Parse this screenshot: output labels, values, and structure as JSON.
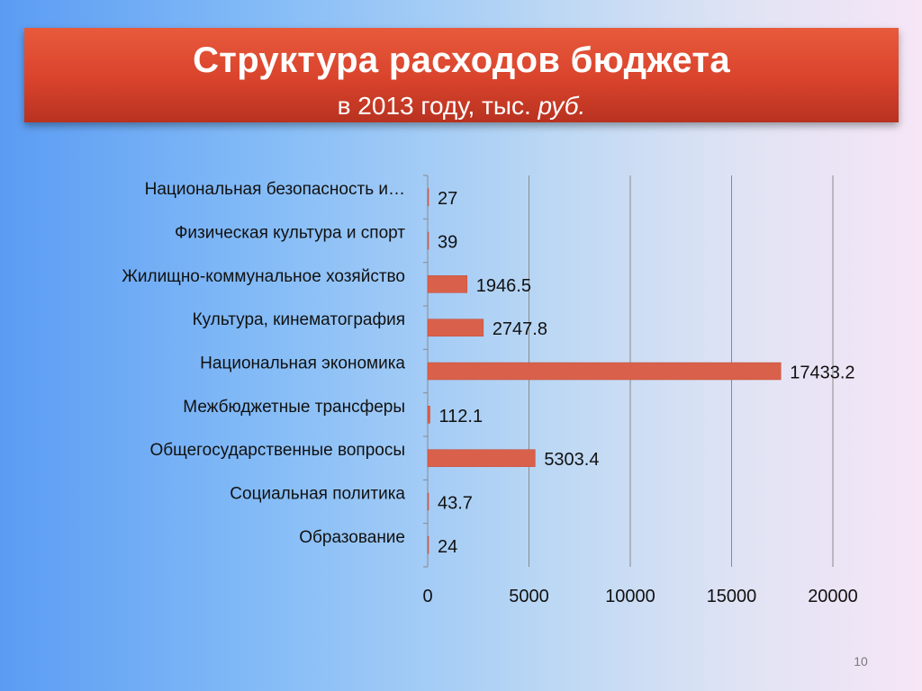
{
  "slide": {
    "title": "Структура расходов  бюджета",
    "subtitle_prefix": "в 2013 году, тыс. ",
    "subtitle_italic": "руб.",
    "page_number": "10"
  },
  "chart_data": {
    "type": "bar",
    "orientation": "horizontal",
    "categories": [
      "Национальная безопасность и…",
      "Физическая культура и спорт",
      "Жилищно-коммунальное хозяйство",
      "Культура, кинематография",
      "Национальная экономика",
      "Межбюджетные трансферы",
      "Общегосударственные вопросы",
      "Социальная политика",
      "Образование"
    ],
    "values": [
      27,
      39,
      1946.5,
      2747.8,
      17433.2,
      112.1,
      5303.4,
      43.7,
      24
    ],
    "value_labels": [
      "27",
      "39",
      "1946.5",
      "2747.8",
      "17433.2",
      "112.1",
      "5303.4",
      "43.7",
      "24"
    ],
    "xlim": [
      0,
      20000
    ],
    "x_ticks": [
      "0",
      "5000",
      "10000",
      "15000",
      "20000"
    ],
    "grid": "vertical",
    "legend": "none",
    "bar_color": "#d9604a"
  }
}
